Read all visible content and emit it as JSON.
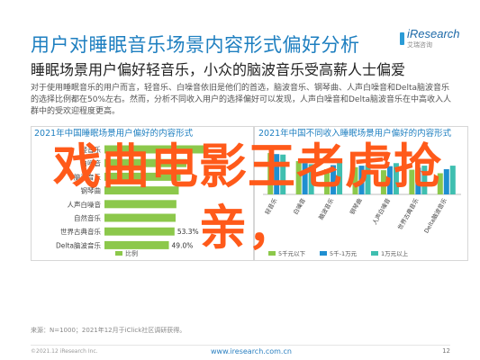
{
  "header": {
    "title": "用户对睡眠音乐场景内容形式偏好分析",
    "brand_name": "iResearch",
    "brand_sub": "艾瑞咨询",
    "subtitle": "睡眠场景用户偏好轻音乐，小众的脑波音乐受高薪人士偏爱",
    "summary": "对于使用睡眠音乐的用户而言，轻音乐、白噪音依旧是他们的首选，脑波音乐、钢琴曲、人声白噪音和Delta脑波音乐的选择比例都在50%左右。然而，分析不同收入用户的选择偏好可以发现，人声白噪音和Delta脑波音乐在中高收入人群中的受欢迎程度更高。"
  },
  "overlay_text": "戏曲电影王老虎抢亲，",
  "source": "来源：N=1000；2021年12月于iClick社区调研获得。",
  "footer": {
    "left": "©2021.12 iResearch Inc.",
    "center": "www.iresearch.com.cn",
    "page": "12"
  },
  "chart_data": [
    {
      "type": "bar",
      "orientation": "horizontal",
      "title": "2021年中国睡眠场景用户偏好的内容形式",
      "categories": [
        "轻音乐",
        "白噪音",
        "脑波音乐",
        "钢琴曲",
        "人声白噪音",
        "自然音乐",
        "世界古典音乐",
        "Delta脑波音乐"
      ],
      "values": [
        79.1,
        62.3,
        57.9,
        56.5,
        54.7,
        54.1,
        53.3,
        49.0
      ],
      "value_labels": [
        "",
        "",
        "",
        "",
        "",
        "",
        "53.3%",
        "49.0%"
      ],
      "legend": [
        "比例"
      ],
      "xlim": [
        0,
        100
      ],
      "color": "#8cc84b"
    },
    {
      "type": "bar",
      "title": "2021年中国不同收入睡眠场景用户偏好的内容形式",
      "categories": [
        "轻音乐",
        "白噪音",
        "脑波音乐",
        "钢琴曲",
        "人声白噪音",
        "世界古典音乐",
        "Delta脑波音乐"
      ],
      "series": [
        {
          "name": "5千元以下",
          "color": "#8cc84b",
          "values": [
            0.82,
            0.66,
            0.5,
            0.54,
            0.48,
            0.49,
            0.42
          ]
        },
        {
          "name": "5千-1万元",
          "color": "#1f8fd0",
          "values": [
            0.8,
            0.62,
            0.58,
            0.57,
            0.56,
            0.53,
            0.5
          ]
        },
        {
          "name": "1万元以上",
          "color": "#3fbfb0",
          "values": [
            0.79,
            0.6,
            0.64,
            0.58,
            0.62,
            0.57,
            0.57
          ]
        }
      ],
      "ylim": [
        0,
        1
      ]
    }
  ]
}
